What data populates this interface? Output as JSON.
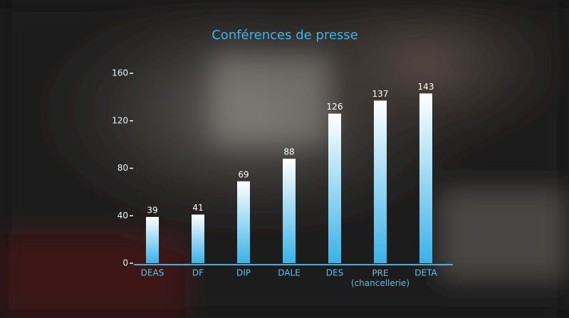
{
  "chart_data": {
    "type": "bar",
    "title": "Conférences de presse",
    "categories": [
      "DEAS",
      "DF",
      "DIP",
      "DALE",
      "DES",
      "PRE\n(chancellerie)",
      "DETA"
    ],
    "values": [
      39,
      41,
      69,
      88,
      126,
      137,
      143
    ],
    "color": "#39b2e8",
    "ylim": [
      0,
      160
    ],
    "yticks": [
      0,
      40,
      80,
      120,
      160
    ],
    "grid": false
  }
}
